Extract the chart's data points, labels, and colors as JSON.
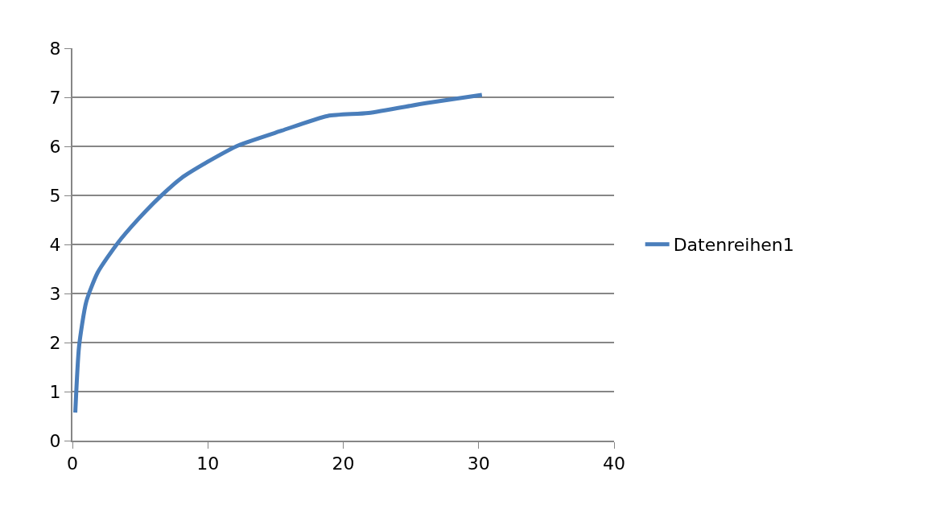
{
  "chart_data": {
    "type": "line",
    "series": [
      {
        "name": "Datenreihen1",
        "color": "#4a7ebb",
        "x": [
          0.21,
          0.49,
          1.02,
          1.87,
          3.35,
          4.84,
          6.54,
          8.03,
          10.15,
          12.27,
          15.46,
          18.85,
          21.86,
          26.1,
          30.24
        ],
        "values": [
          0.57,
          1.92,
          2.83,
          3.43,
          4.03,
          4.51,
          4.99,
          5.35,
          5.71,
          6.02,
          6.32,
          6.62,
          6.68,
          6.88,
          7.05
        ]
      }
    ],
    "xlim": [
      0,
      40
    ],
    "xticks": [
      0,
      10,
      20,
      30,
      40
    ],
    "ylim": [
      0,
      8
    ],
    "yticks": [
      0,
      1,
      2,
      3,
      4,
      5,
      6,
      7,
      8
    ],
    "grid": "y",
    "legend": "right",
    "marker": "none",
    "line_style": "solid"
  }
}
